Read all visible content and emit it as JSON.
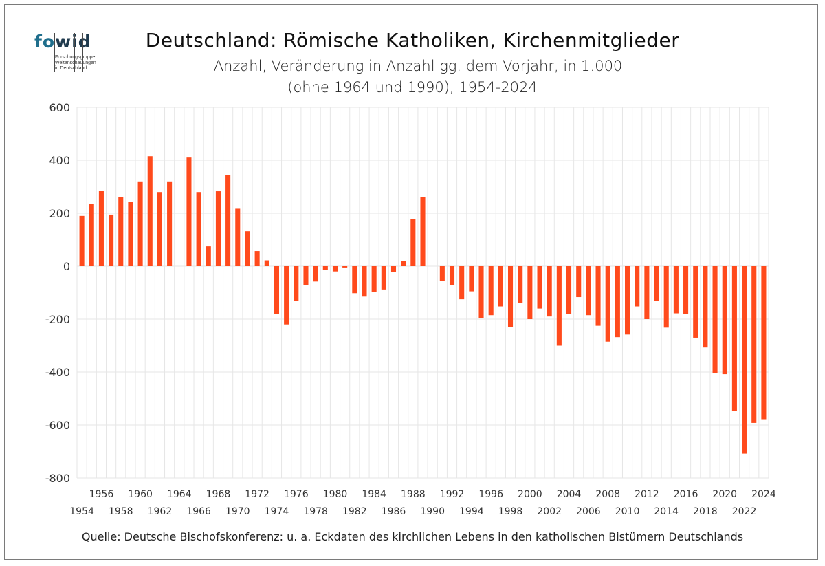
{
  "logo": {
    "text_fo": "fo",
    "text_wid": "wid",
    "sub_lines": [
      "Forschungsgruppe",
      "Weltanschauungen",
      "in Deutschland"
    ]
  },
  "title": "Deutschland: Römische Katholiken, Kirchenmitglieder",
  "subtitle_line1": "Anzahl, Veränderung in Anzahl gg. dem Vorjahr, in 1.000",
  "subtitle_line2": "(ohne 1964 und 1990), 1954-2024",
  "source": "Quelle: Deutsche Bischofskonferenz: u. a.  Eckdaten des kirchlichen Lebens in den katholischen Bistümern Deutschlands",
  "colors": {
    "bar": "#ff4a1c",
    "grid": "#e6e6e6",
    "axis": "#999999"
  },
  "chart_data": {
    "type": "bar",
    "xlabel": "",
    "ylabel": "",
    "ylim": [
      -800,
      600
    ],
    "yticks": [
      600,
      400,
      200,
      0,
      -200,
      -400,
      -600,
      -800
    ],
    "ytick_labels": [
      "600",
      "400",
      "200",
      "0",
      "-200",
      "-400",
      "-600",
      "-800"
    ],
    "grid": true,
    "categories": [
      1954,
      1955,
      1956,
      1957,
      1958,
      1959,
      1960,
      1961,
      1962,
      1963,
      1964,
      1965,
      1966,
      1967,
      1968,
      1969,
      1970,
      1971,
      1972,
      1973,
      1974,
      1975,
      1976,
      1977,
      1978,
      1979,
      1980,
      1981,
      1982,
      1983,
      1984,
      1985,
      1986,
      1987,
      1988,
      1989,
      1990,
      1991,
      1992,
      1993,
      1994,
      1995,
      1996,
      1997,
      1998,
      1999,
      2000,
      2001,
      2002,
      2003,
      2004,
      2005,
      2006,
      2007,
      2008,
      2009,
      2010,
      2011,
      2012,
      2013,
      2014,
      2015,
      2016,
      2017,
      2018,
      2019,
      2020,
      2021,
      2022,
      2023,
      2024
    ],
    "values": [
      190,
      235,
      285,
      195,
      260,
      242,
      320,
      415,
      280,
      320,
      null,
      410,
      280,
      75,
      283,
      343,
      217,
      132,
      57,
      22,
      -180,
      -220,
      -130,
      -72,
      -58,
      -14,
      -20,
      -5,
      -102,
      -115,
      -98,
      -88,
      -22,
      20,
      177,
      262,
      null,
      -55,
      -72,
      -125,
      -95,
      -195,
      -185,
      -152,
      -230,
      -138,
      -200,
      -160,
      -190,
      -300,
      -180,
      -117,
      -185,
      -225,
      -285,
      -268,
      -258,
      -152,
      -200,
      -130,
      -232,
      -178,
      -180,
      -270,
      -307,
      -403,
      -408,
      -548,
      -708,
      -592,
      -578
    ],
    "x_tick_labels_top": [
      "1956",
      "1960",
      "1964",
      "1968",
      "1972",
      "1976",
      "1980",
      "1984",
      "1988",
      "1992",
      "1996",
      "2000",
      "2004",
      "2008",
      "2012",
      "2016",
      "2020",
      "2024"
    ],
    "x_tick_labels_bottom": [
      "1954",
      "1958",
      "1962",
      "1966",
      "1970",
      "1974",
      "1978",
      "1982",
      "1986",
      "1990",
      "1994",
      "1998",
      "2002",
      "2006",
      "2010",
      "2014",
      "2018",
      "2022"
    ]
  }
}
